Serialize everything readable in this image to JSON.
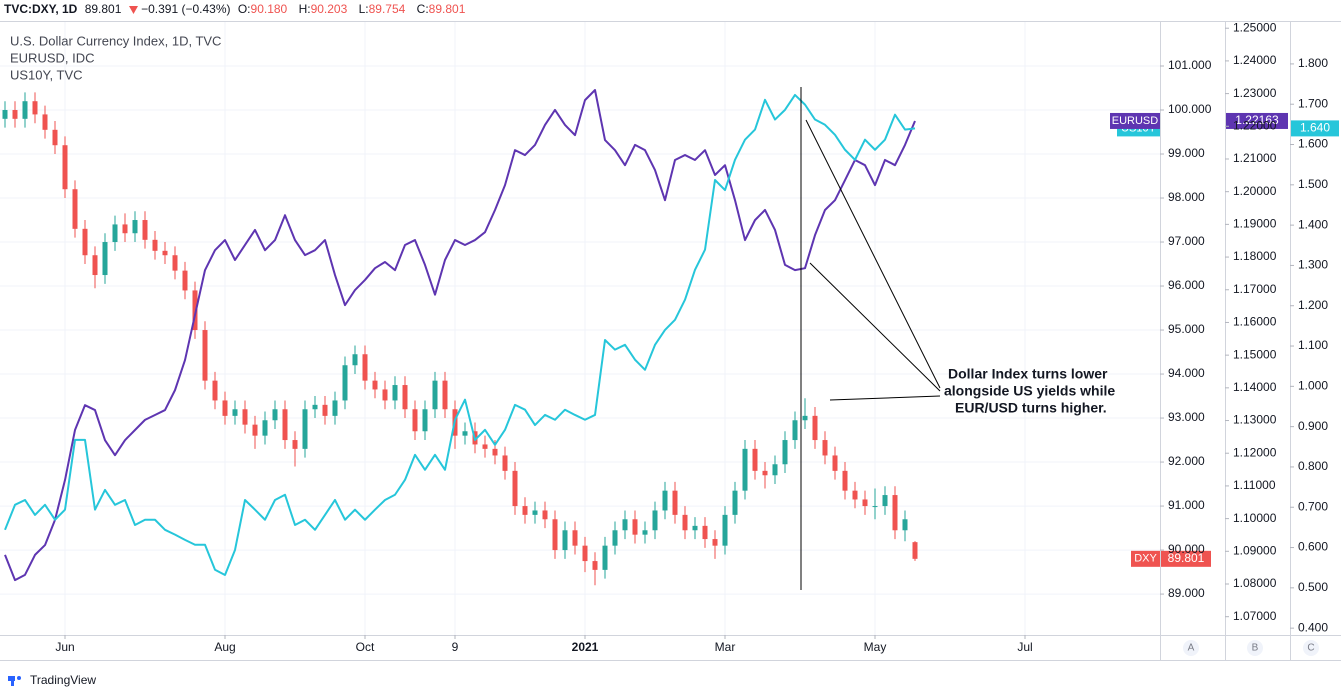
{
  "chart_data": {
    "type": "candlestick",
    "header": {
      "symbol": "TVC:DXY, 1D",
      "last": "89.801",
      "change": "−0.391 (−0.43%)",
      "ohlc": [
        {
          "key": "O:",
          "value": "90.180"
        },
        {
          "key": "H:",
          "value": "90.203"
        },
        {
          "key": "L:",
          "value": "89.754"
        },
        {
          "key": "C:",
          "value": "89.801"
        }
      ]
    },
    "annotation": [
      "Dollar Index turns lower",
      "alongside US yields while",
      "EUR/USD turns higher."
    ],
    "axis_buttons": [
      "A",
      "B",
      "C"
    ],
    "logo": "TradingView",
    "grid": true,
    "categories": [
      null,
      null,
      null,
      null,
      null,
      null,
      "Jun",
      null,
      null,
      null,
      null,
      null,
      null,
      null,
      null,
      null,
      null,
      null,
      null,
      null,
      null,
      null,
      "Aug",
      null,
      null,
      null,
      null,
      null,
      null,
      null,
      null,
      null,
      null,
      null,
      null,
      null,
      "Oct",
      null,
      null,
      null,
      null,
      null,
      null,
      null,
      null,
      "9",
      null,
      null,
      null,
      null,
      null,
      null,
      null,
      null,
      null,
      null,
      null,
      null,
      "2021",
      null,
      null,
      null,
      null,
      null,
      null,
      null,
      null,
      null,
      null,
      null,
      null,
      null,
      "Mar",
      null,
      null,
      null,
      null,
      null,
      null,
      null,
      null,
      null,
      null,
      null,
      null,
      null,
      null,
      "May",
      null,
      null,
      null,
      null,
      null,
      null,
      null,
      null,
      null,
      null,
      null,
      null,
      null,
      null,
      "Jul",
      null,
      null,
      null,
      null,
      null,
      null,
      null,
      null,
      null,
      null,
      null,
      null,
      null
    ],
    "series": [
      {
        "name": "U.S. Dollar Currency Index, 1D, TVC",
        "short_name": "DXY",
        "type": "candlestick",
        "axis": "y",
        "color": "#ef5350",
        "up_color": "#26a69a",
        "down_color": "#ef5350",
        "last_label": "89.801",
        "open": [
          99.8,
          100.0,
          99.8,
          100.2,
          99.9,
          99.55,
          99.2,
          98.2,
          97.3,
          96.7,
          96.25,
          97.0,
          97.4,
          97.2,
          97.5,
          97.05,
          96.8,
          96.7,
          96.35,
          95.9,
          95.0,
          93.85,
          93.4,
          93.05,
          93.2,
          92.85,
          92.6,
          92.95,
          93.2,
          92.5,
          92.3,
          93.2,
          93.3,
          93.05,
          93.4,
          94.2,
          94.45,
          93.85,
          93.65,
          93.4,
          93.75,
          93.2,
          92.7,
          93.2,
          93.85,
          93.2,
          92.6,
          92.7,
          92.4,
          92.3,
          92.15,
          91.8,
          91.0,
          90.8,
          90.9,
          90.7,
          90.0,
          90.45,
          90.1,
          89.75,
          89.55,
          90.1,
          90.45,
          90.7,
          90.35,
          90.45,
          90.9,
          91.35,
          90.8,
          90.45,
          90.55,
          90.25,
          90.1,
          90.8,
          91.35,
          92.3,
          91.8,
          91.7,
          91.95,
          92.5,
          92.95,
          93.05,
          92.5,
          92.15,
          91.8,
          91.35,
          91.15,
          91.0,
          91.0,
          91.25,
          90.45,
          90.18,
          null,
          null,
          null,
          null,
          null,
          null,
          null,
          null,
          null,
          null,
          null,
          null,
          null,
          null,
          null,
          null,
          null,
          null,
          null,
          null,
          null,
          null,
          null,
          null
        ],
        "high": [
          100.2,
          100.2,
          100.4,
          100.4,
          100.1,
          99.75,
          99.4,
          98.4,
          97.5,
          96.9,
          97.2,
          97.6,
          97.65,
          97.7,
          97.7,
          97.25,
          97.0,
          96.9,
          96.55,
          96.1,
          95.2,
          94.05,
          93.6,
          93.4,
          93.4,
          93.05,
          93.15,
          93.4,
          93.4,
          92.7,
          93.4,
          93.5,
          93.5,
          93.6,
          94.4,
          94.65,
          94.65,
          94.05,
          93.85,
          93.95,
          93.95,
          93.4,
          93.4,
          94.05,
          94.05,
          93.4,
          92.9,
          92.9,
          92.6,
          92.5,
          92.35,
          92.0,
          91.2,
          91.1,
          91.1,
          90.9,
          90.65,
          90.65,
          90.3,
          89.95,
          90.3,
          90.65,
          90.9,
          90.9,
          90.65,
          91.1,
          91.55,
          91.55,
          91.0,
          90.75,
          90.75,
          90.45,
          91.0,
          91.55,
          92.5,
          92.5,
          92.0,
          92.15,
          92.7,
          93.15,
          93.45,
          93.25,
          92.7,
          92.35,
          92.0,
          91.55,
          91.35,
          91.4,
          91.45,
          91.45,
          90.9,
          90.203,
          null,
          null,
          null,
          null,
          null,
          null,
          null,
          null,
          null,
          null,
          null,
          null,
          null,
          null,
          null,
          null,
          null,
          null,
          null,
          null,
          null,
          null,
          null,
          null
        ],
        "low": [
          99.6,
          99.6,
          99.6,
          99.7,
          99.35,
          99.0,
          98.0,
          97.1,
          96.5,
          95.95,
          96.05,
          96.8,
          97.0,
          97.0,
          96.85,
          96.6,
          96.5,
          96.15,
          95.7,
          94.8,
          93.65,
          93.2,
          92.85,
          92.85,
          92.65,
          92.3,
          92.4,
          92.75,
          92.3,
          91.9,
          92.1,
          93.0,
          92.85,
          92.85,
          93.2,
          94.0,
          93.65,
          93.45,
          93.2,
          93.2,
          93.0,
          92.5,
          92.5,
          93.0,
          93.0,
          92.3,
          92.4,
          92.2,
          92.1,
          91.95,
          91.6,
          90.8,
          90.6,
          90.6,
          90.5,
          89.8,
          89.8,
          89.9,
          89.5,
          89.2,
          89.35,
          89.9,
          90.25,
          90.15,
          90.15,
          90.25,
          90.7,
          90.6,
          90.25,
          90.25,
          90.05,
          89.8,
          89.9,
          90.6,
          91.15,
          91.6,
          91.4,
          91.5,
          91.75,
          92.3,
          92.75,
          92.3,
          91.95,
          91.6,
          91.15,
          90.95,
          90.8,
          90.7,
          90.8,
          90.25,
          90.2,
          89.754,
          null,
          null,
          null,
          null,
          null,
          null,
          null,
          null,
          null,
          null,
          null,
          null,
          null,
          null,
          null,
          null,
          null,
          null,
          null,
          null,
          null,
          null,
          null,
          null
        ],
        "close": [
          100.0,
          99.8,
          100.2,
          99.9,
          99.55,
          99.2,
          98.2,
          97.3,
          96.7,
          96.25,
          97.0,
          97.4,
          97.2,
          97.5,
          97.05,
          96.8,
          96.7,
          96.35,
          95.9,
          95.0,
          93.85,
          93.4,
          93.05,
          93.2,
          92.85,
          92.6,
          92.95,
          93.2,
          92.5,
          92.3,
          93.2,
          93.3,
          93.05,
          93.4,
          94.2,
          94.45,
          93.85,
          93.65,
          93.4,
          93.75,
          93.2,
          92.7,
          93.2,
          93.85,
          93.2,
          92.6,
          92.7,
          92.4,
          92.3,
          92.15,
          91.8,
          91.0,
          90.8,
          90.9,
          90.7,
          90.0,
          90.45,
          90.1,
          89.75,
          89.55,
          90.1,
          90.45,
          90.7,
          90.35,
          90.45,
          90.9,
          91.35,
          90.8,
          90.45,
          90.55,
          90.25,
          90.1,
          90.8,
          91.35,
          92.3,
          91.8,
          91.7,
          91.95,
          92.5,
          92.95,
          93.05,
          92.5,
          92.15,
          91.8,
          91.35,
          91.15,
          91.0,
          91.0,
          91.25,
          90.45,
          90.7,
          89.801,
          null,
          null,
          null,
          null,
          null,
          null,
          null,
          null,
          null,
          null,
          null,
          null,
          null,
          null,
          null,
          null,
          null,
          null,
          null,
          null,
          null,
          null,
          null,
          null
        ]
      },
      {
        "name": "EURUSD, IDC",
        "short_name": "EURUSD",
        "type": "line",
        "axis": "y2",
        "color": "#5e35b1",
        "last_label": "1.22163",
        "values": [
          1.0889,
          1.0812,
          1.0828,
          1.0889,
          1.0919,
          1.0996,
          1.1118,
          1.1271,
          1.1347,
          1.1332,
          1.124,
          1.1194,
          1.124,
          1.1271,
          1.1302,
          1.1317,
          1.1332,
          1.1393,
          1.1485,
          1.1623,
          1.176,
          1.1821,
          1.1852,
          1.1791,
          1.1837,
          1.1883,
          1.1821,
          1.1852,
          1.1928,
          1.1852,
          1.1806,
          1.1821,
          1.1852,
          1.1745,
          1.1653,
          1.1699,
          1.173,
          1.1766,
          1.1785,
          1.176,
          1.1837,
          1.1852,
          1.1776,
          1.1685,
          1.1791,
          1.1852,
          1.1837,
          1.1852,
          1.1876,
          1.1944,
          1.202,
          1.2127,
          1.2112,
          1.2143,
          1.2204,
          1.225,
          1.2204,
          1.2173,
          1.228,
          1.2311,
          1.2158,
          1.2127,
          1.2081,
          1.2143,
          1.2127,
          1.2066,
          1.1974,
          1.2097,
          1.2112,
          1.2097,
          1.2127,
          1.2051,
          1.2081,
          1.1974,
          1.1852,
          1.1913,
          1.1944,
          1.1883,
          1.1776,
          1.176,
          1.1766,
          1.1867,
          1.1944,
          1.1974,
          1.2035,
          1.2097,
          1.2081,
          1.202,
          1.2097,
          1.2081,
          1.2143,
          1.22163,
          null,
          null,
          null,
          null,
          null,
          null,
          null,
          null,
          null,
          null,
          null,
          null,
          null,
          null,
          null,
          null,
          null,
          null,
          null,
          null,
          null,
          null,
          null,
          null
        ]
      },
      {
        "name": "US10Y, TVC",
        "short_name": "US10Y",
        "type": "line",
        "axis": "y3",
        "color": "#26c6da",
        "last_label": "1.640",
        "values": [
          0.644,
          0.706,
          0.718,
          0.681,
          0.706,
          0.669,
          0.694,
          0.867,
          0.867,
          0.694,
          0.743,
          0.706,
          0.718,
          0.656,
          0.669,
          0.669,
          0.644,
          0.632,
          0.619,
          0.607,
          0.607,
          0.545,
          0.532,
          0.594,
          0.718,
          0.694,
          0.669,
          0.718,
          0.731,
          0.656,
          0.669,
          0.644,
          0.681,
          0.718,
          0.669,
          0.694,
          0.669,
          0.694,
          0.718,
          0.731,
          0.768,
          0.83,
          0.793,
          0.83,
          0.793,
          0.917,
          0.967,
          0.867,
          0.892,
          0.855,
          0.892,
          0.954,
          0.942,
          0.904,
          0.929,
          0.917,
          0.942,
          0.929,
          0.917,
          0.929,
          1.115,
          1.091,
          1.103,
          1.066,
          1.041,
          1.103,
          1.14,
          1.165,
          1.215,
          1.289,
          1.339,
          1.512,
          1.487,
          1.562,
          1.612,
          1.637,
          1.711,
          1.662,
          1.686,
          1.723,
          1.699,
          1.662,
          1.649,
          1.624,
          1.587,
          1.562,
          1.612,
          1.587,
          1.612,
          1.674,
          1.637,
          1.64,
          null,
          null,
          null,
          null,
          null,
          null,
          null,
          null,
          null,
          null,
          null,
          null,
          null,
          null,
          null,
          null,
          null,
          null,
          null,
          null,
          null,
          null,
          null,
          null
        ]
      }
    ],
    "ylim": [
      88.07,
      102.0
    ],
    "yticks": [
      {
        "value": 89,
        "label": "89.000"
      },
      {
        "value": 90,
        "label": "90.000"
      },
      {
        "value": 91,
        "label": "91.000"
      },
      {
        "value": 92,
        "label": "92.000"
      },
      {
        "value": 93,
        "label": "93.000"
      },
      {
        "value": 94,
        "label": "94.000"
      },
      {
        "value": 95,
        "label": "95.000"
      },
      {
        "value": 96,
        "label": "96.000"
      },
      {
        "value": 97,
        "label": "97.000"
      },
      {
        "value": 98,
        "label": "98.000"
      },
      {
        "value": 99,
        "label": "99.000"
      },
      {
        "value": 100,
        "label": "100.000"
      },
      {
        "value": 101,
        "label": "101.000"
      }
    ],
    "y2lim": [
      1.0644,
      1.2519
    ],
    "y2ticks": [
      {
        "value": 1.07,
        "label": "1.07000"
      },
      {
        "value": 1.08,
        "label": "1.08000"
      },
      {
        "value": 1.09,
        "label": "1.09000"
      },
      {
        "value": 1.1,
        "label": "1.10000"
      },
      {
        "value": 1.11,
        "label": "1.11000"
      },
      {
        "value": 1.12,
        "label": "1.12000"
      },
      {
        "value": 1.13,
        "label": "1.13000"
      },
      {
        "value": 1.14,
        "label": "1.14000"
      },
      {
        "value": 1.15,
        "label": "1.15000"
      },
      {
        "value": 1.16,
        "label": "1.16000"
      },
      {
        "value": 1.17,
        "label": "1.17000"
      },
      {
        "value": 1.18,
        "label": "1.18000"
      },
      {
        "value": 1.19,
        "label": "1.19000"
      },
      {
        "value": 1.2,
        "label": "1.20000"
      },
      {
        "value": 1.21,
        "label": "1.21000"
      },
      {
        "value": 1.22,
        "label": "1.22000"
      },
      {
        "value": 1.23,
        "label": "1.23000"
      },
      {
        "value": 1.24,
        "label": "1.24000"
      },
      {
        "value": 1.25,
        "label": "1.25000"
      }
    ],
    "y3lim": [
      0.383,
      1.904
    ],
    "y3ticks": [
      {
        "value": 0.4,
        "label": "0.400"
      },
      {
        "value": 0.5,
        "label": "0.500"
      },
      {
        "value": 0.6,
        "label": "0.600"
      },
      {
        "value": 0.7,
        "label": "0.700"
      },
      {
        "value": 0.8,
        "label": "0.800"
      },
      {
        "value": 0.9,
        "label": "0.900"
      },
      {
        "value": 1.0,
        "label": "1.000"
      },
      {
        "value": 1.1,
        "label": "1.100"
      },
      {
        "value": 1.2,
        "label": "1.200"
      },
      {
        "value": 1.3,
        "label": "1.300"
      },
      {
        "value": 1.4,
        "label": "1.400"
      },
      {
        "value": 1.5,
        "label": "1.500"
      },
      {
        "value": 1.6,
        "label": "1.600"
      },
      {
        "value": 1.7,
        "label": "1.700"
      },
      {
        "value": 1.8,
        "label": "1.800"
      }
    ]
  }
}
